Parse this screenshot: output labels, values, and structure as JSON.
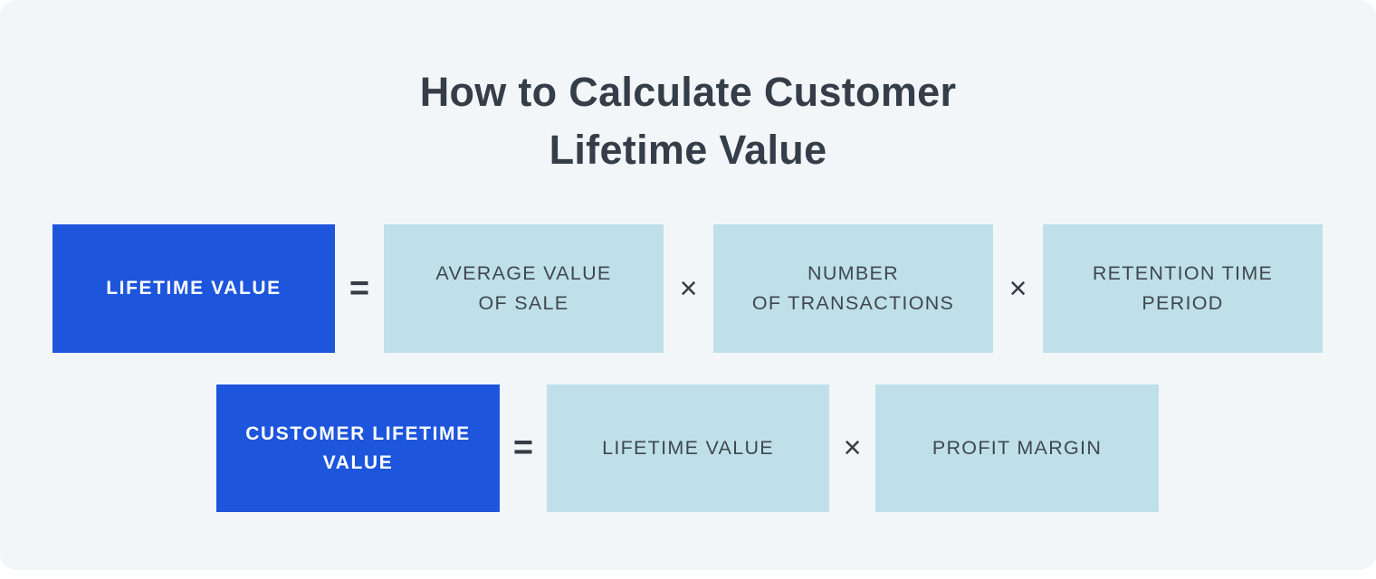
{
  "title": {
    "line1": "How to Calculate Customer",
    "line2": "Lifetime Value"
  },
  "operators": {
    "equals": "=",
    "multiply": "×"
  },
  "colors": {
    "page_background": "#f2f6f9",
    "primary_blue_box": "#1d55dc",
    "light_blue_box": "#bfe0e9",
    "dark_text": "#353e48",
    "white_text": "#ffffff"
  },
  "formulas": [
    {
      "result": {
        "lines": [
          "LIFETIME VALUE"
        ]
      },
      "operands": [
        {
          "lines": [
            "AVERAGE VALUE",
            "OF SALE"
          ]
        },
        {
          "lines": [
            "NUMBER",
            "OF TRANSACTIONS"
          ]
        },
        {
          "lines": [
            "RETENTION TIME",
            "PERIOD"
          ]
        }
      ]
    },
    {
      "result": {
        "lines": [
          "CUSTOMER LIFETIME",
          "VALUE"
        ]
      },
      "operands": [
        {
          "lines": [
            "LIFETIME VALUE"
          ]
        },
        {
          "lines": [
            "PROFIT MARGIN"
          ]
        }
      ]
    }
  ]
}
